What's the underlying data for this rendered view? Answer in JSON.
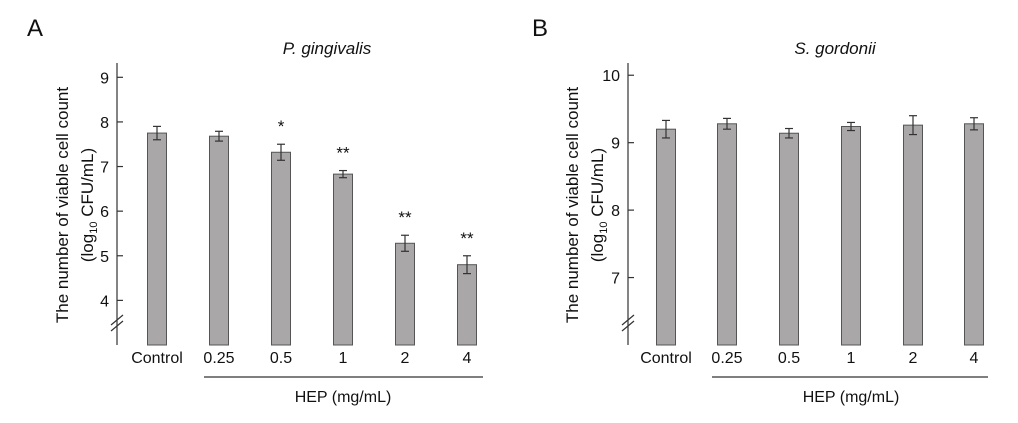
{
  "panels": [
    {
      "letter": "A",
      "chart_data": {
        "type": "bar",
        "title": "P. gingivalis",
        "ylabel_main": "The number of viable cell count",
        "ylabel_unit_pre": "(log",
        "ylabel_unit_sub": "10",
        "ylabel_unit_post": " CFU/mL)",
        "xlabel": "HEP (mg/mL)",
        "categories": [
          "Control",
          "0.25",
          "0.5",
          "1",
          "2",
          "4"
        ],
        "values": [
          7.75,
          7.68,
          7.32,
          6.83,
          5.28,
          4.8
        ],
        "errors": [
          0.15,
          0.11,
          0.18,
          0.08,
          0.18,
          0.2
        ],
        "significance": [
          "",
          "",
          "*",
          "**",
          "**",
          "**"
        ],
        "yticks": [
          4,
          5,
          6,
          7,
          8,
          9
        ],
        "ylim": [
          3,
          9.5
        ],
        "axis_break": true
      }
    },
    {
      "letter": "B",
      "chart_data": {
        "type": "bar",
        "title": "S. gordonii",
        "ylabel_main": "The number of viable cell count",
        "ylabel_unit_pre": "(log",
        "ylabel_unit_sub": "10",
        "ylabel_unit_post": " CFU/mL)",
        "xlabel": "HEP (mg/mL)",
        "categories": [
          "Control",
          "0.25",
          "0.5",
          "1",
          "2",
          "4"
        ],
        "values": [
          9.2,
          9.28,
          9.14,
          9.24,
          9.26,
          9.28
        ],
        "errors": [
          0.13,
          0.08,
          0.07,
          0.06,
          0.14,
          0.09
        ],
        "significance": [
          "",
          "",
          "",
          "",
          "",
          ""
        ],
        "yticks": [
          7,
          8,
          9,
          10
        ],
        "ylim": [
          6,
          10.3
        ],
        "axis_break": true
      }
    }
  ]
}
